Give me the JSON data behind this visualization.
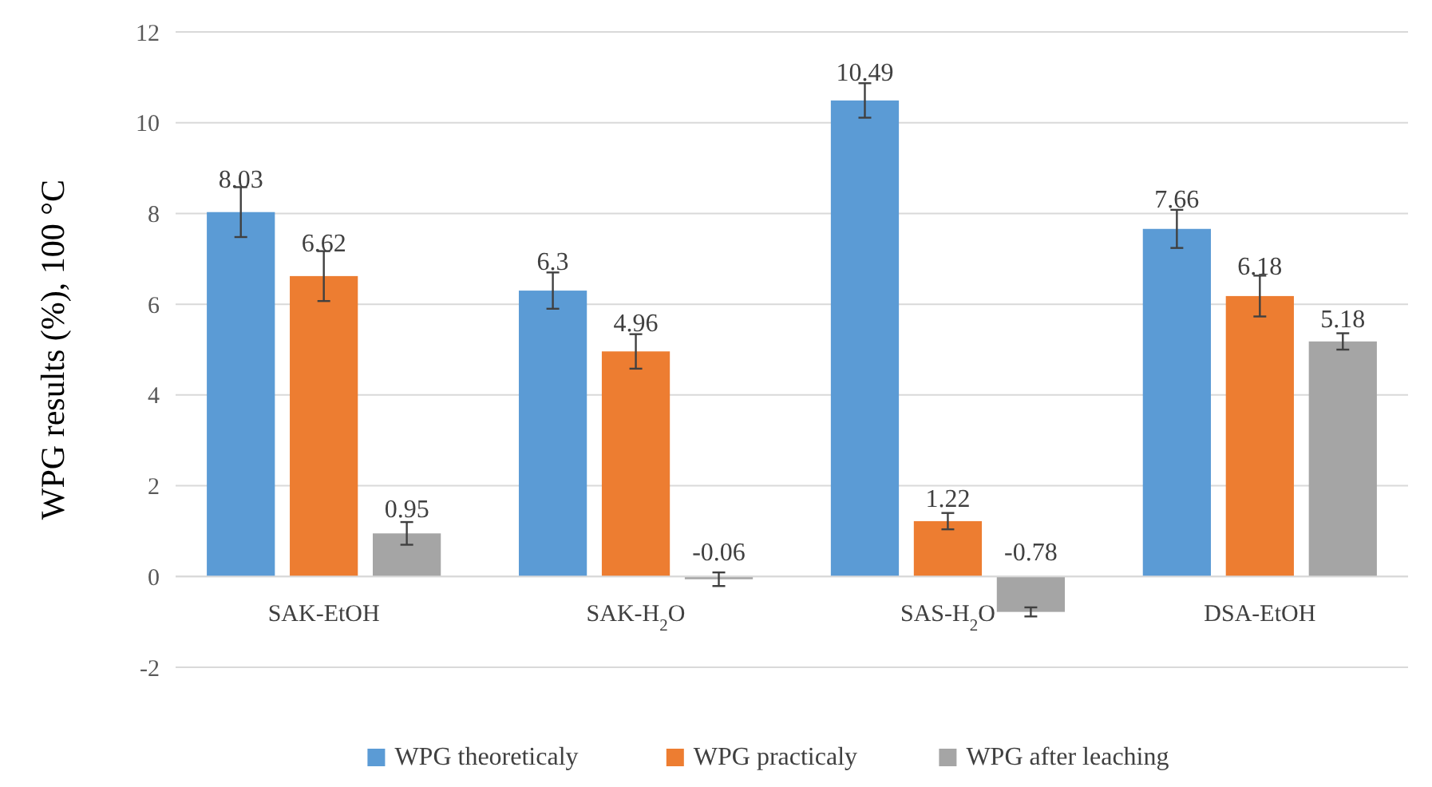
{
  "chart_data": {
    "type": "bar",
    "ylabel": "WPG results (%), 100 °C",
    "categories": [
      "SAK-EtOH",
      "SAK-H$_{2}$O",
      "SAS-H$_{2}$O",
      "DSA-EtOH"
    ],
    "series": [
      {
        "name": "WPG theoreticaly",
        "color": "#5b9bd5",
        "values": [
          8.03,
          6.3,
          10.49,
          7.66
        ],
        "errors": [
          0.55,
          0.4,
          0.38,
          0.42
        ]
      },
      {
        "name": "WPG practicaly",
        "color": "#ed7d31",
        "values": [
          6.62,
          4.96,
          1.22,
          6.18
        ],
        "errors": [
          0.55,
          0.38,
          0.18,
          0.45
        ]
      },
      {
        "name": "WPG after leaching",
        "color": "#a5a5a5",
        "values": [
          0.95,
          -0.06,
          -0.78,
          5.18
        ],
        "errors": [
          0.25,
          0.15,
          0.1,
          0.18
        ]
      }
    ],
    "ylim": [
      -2,
      12
    ],
    "yticks": [
      -2,
      0,
      2,
      4,
      6,
      8,
      10,
      12
    ],
    "grid": "y",
    "legend": "bottom",
    "data_labels": true
  }
}
